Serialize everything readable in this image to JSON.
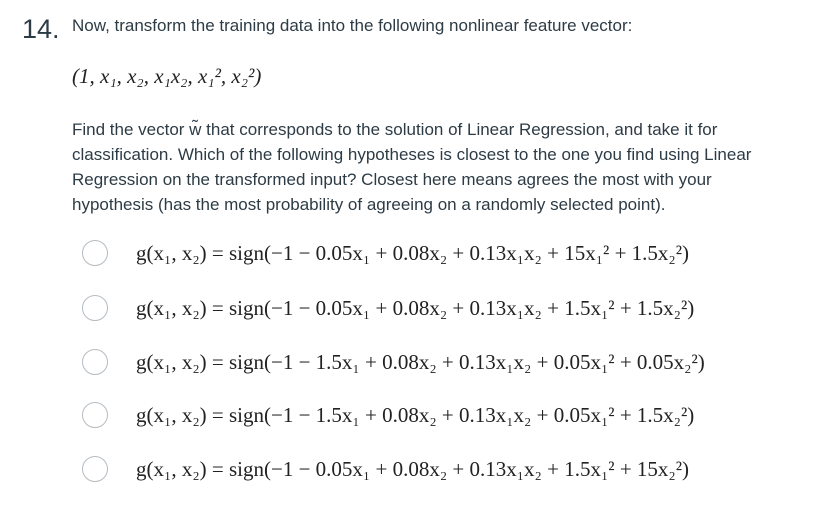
{
  "question": {
    "number": "14.",
    "intro": "Now, transform the training data into the following nonlinear feature vector:",
    "feature_vector": "(1, x₁, x₂, x₁x₂, x₁², x₂²)",
    "body": "Find the vector w̃ that corresponds to the solution of Linear Regression, and take it for classification. Which of the following hypotheses is closest to the one you find using Linear Regression on the transformed input? Closest here means agrees the most with your hypothesis (has the most probability of agreeing on a randomly selected point).",
    "options": [
      "g(x₁, x₂) = sign(−1 − 0.05x₁ + 0.08x₂ + 0.13x₁x₂ + 15x₁² + 1.5x₂²)",
      "g(x₁, x₂) = sign(−1 − 0.05x₁ + 0.08x₂ + 0.13x₁x₂ + 1.5x₁² + 1.5x₂²)",
      "g(x₁, x₂) = sign(−1 − 1.5x₁ + 0.08x₂ + 0.13x₁x₂ + 0.05x₁² + 0.05x₂²)",
      "g(x₁, x₂) = sign(−1 − 1.5x₁ + 0.08x₂ + 0.13x₁x₂ + 0.05x₁² + 1.5x₂²)",
      "g(x₁, x₂) = sign(−1 − 0.05x₁ + 0.08x₂ + 0.13x₁x₂ + 1.5x₁² + 15x₂²)"
    ]
  }
}
